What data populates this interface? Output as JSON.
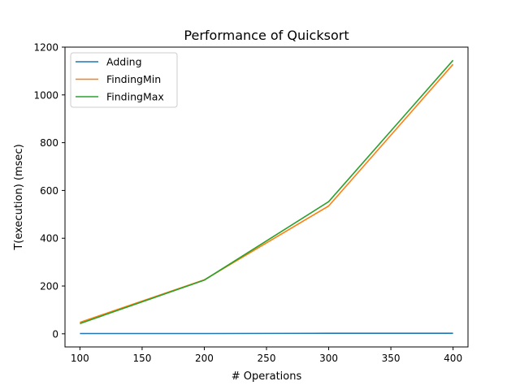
{
  "chart_data": {
    "type": "line",
    "title": "Performance of Quicksort",
    "xlabel": "# Operations",
    "ylabel": "T(execution)  (msec)",
    "xlim": [
      88,
      412
    ],
    "ylim": [
      -55,
      1200
    ],
    "xticks": [
      100,
      150,
      200,
      250,
      300,
      350,
      400
    ],
    "yticks": [
      0,
      200,
      400,
      600,
      800,
      1000,
      1200
    ],
    "grid": false,
    "legend_position": "upper-left",
    "x": [
      100,
      200,
      300,
      400
    ],
    "series": [
      {
        "name": "Adding",
        "color": "#1f77b4",
        "values": [
          1,
          1,
          2,
          2
        ]
      },
      {
        "name": "FindingMin",
        "color": "#ff7f0e",
        "values": [
          48,
          226,
          535,
          1128
        ]
      },
      {
        "name": "FindingMax",
        "color": "#2ca02c",
        "values": [
          43,
          225,
          553,
          1145
        ]
      }
    ]
  }
}
